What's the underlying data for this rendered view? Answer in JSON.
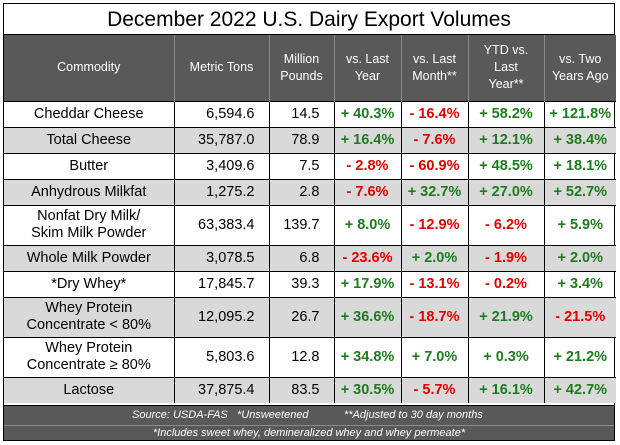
{
  "chart_data": {
    "type": "table",
    "title": "December 2022 U.S. Dairy Export Volumes",
    "columns": [
      "Commodity",
      "Metric Tons",
      "Million Pounds",
      "vs. Last Year",
      "vs. Last Month**",
      "YTD vs. Last Year**",
      "vs. Two Years Ago"
    ],
    "rows": [
      {
        "commodity": "Cheddar Cheese",
        "metric_tons": "6,594.6",
        "million_pounds": "14.5",
        "vs_last_year": "+ 40.3%",
        "vs_last_month": "- 16.4%",
        "ytd_vs_last_year": "+ 58.2%",
        "vs_two_years_ago": "+ 121.8%"
      },
      {
        "commodity": "Total Cheese",
        "metric_tons": "35,787.0",
        "million_pounds": "78.9",
        "vs_last_year": "+ 16.4%",
        "vs_last_month": "- 7.6%",
        "ytd_vs_last_year": "+ 12.1%",
        "vs_two_years_ago": "+ 38.4%"
      },
      {
        "commodity": "Butter",
        "metric_tons": "3,409.6",
        "million_pounds": "7.5",
        "vs_last_year": "- 2.8%",
        "vs_last_month": "- 60.9%",
        "ytd_vs_last_year": "+ 48.5%",
        "vs_two_years_ago": "+ 18.1%"
      },
      {
        "commodity": "Anhydrous Milkfat",
        "metric_tons": "1,275.2",
        "million_pounds": "2.8",
        "vs_last_year": "- 7.6%",
        "vs_last_month": "+ 32.7%",
        "ytd_vs_last_year": "+ 27.0%",
        "vs_two_years_ago": "+ 52.7%"
      },
      {
        "commodity": "Nonfat Dry Milk/ Skim Milk Powder",
        "metric_tons": "63,383.4",
        "million_pounds": "139.7",
        "vs_last_year": "+ 8.0%",
        "vs_last_month": "- 12.9%",
        "ytd_vs_last_year": "- 6.2%",
        "vs_two_years_ago": "+ 5.9%"
      },
      {
        "commodity": "Whole Milk Powder",
        "metric_tons": "3,078.5",
        "million_pounds": "6.8",
        "vs_last_year": "- 23.6%",
        "vs_last_month": "+ 2.0%",
        "ytd_vs_last_year": "- 1.9%",
        "vs_two_years_ago": "+ 2.0%"
      },
      {
        "commodity": "*Dry Whey*",
        "metric_tons": "17,845.7",
        "million_pounds": "39.3",
        "vs_last_year": "+ 17.9%",
        "vs_last_month": "- 13.1%",
        "ytd_vs_last_year": "- 0.2%",
        "vs_two_years_ago": "+ 3.4%"
      },
      {
        "commodity": "Whey Protein Concentrate < 80%",
        "metric_tons": "12,095.2",
        "million_pounds": "26.7",
        "vs_last_year": "+ 36.6%",
        "vs_last_month": "- 18.7%",
        "ytd_vs_last_year": "+ 21.9%",
        "vs_two_years_ago": "- 21.5%"
      },
      {
        "commodity": "Whey Protein Concentrate ≥ 80%",
        "metric_tons": "5,803.6",
        "million_pounds": "12.8",
        "vs_last_year": "+ 34.8%",
        "vs_last_month": "+ 7.0%",
        "ytd_vs_last_year": "+ 0.3%",
        "vs_two_years_ago": "+ 21.2%"
      },
      {
        "commodity": "Lactose",
        "metric_tons": "37,875.4",
        "million_pounds": "83.5",
        "vs_last_year": "+ 30.5%",
        "vs_last_month": "- 5.7%",
        "ytd_vs_last_year": "+ 16.1%",
        "vs_two_years_ago": "+ 42.7%"
      }
    ],
    "positive_color": "#1e7b1e",
    "negative_color": "#e00000",
    "header_color": "#595959",
    "shaded_row_color": "#d9d9d9"
  },
  "footer": {
    "source": "Source:  USDA-FAS",
    "unsweetened": "*Unsweetened",
    "adjusted": "**Adjusted to 30 day months",
    "whey_note": "*Includes sweet whey, demineralized whey and whey permeate*"
  }
}
